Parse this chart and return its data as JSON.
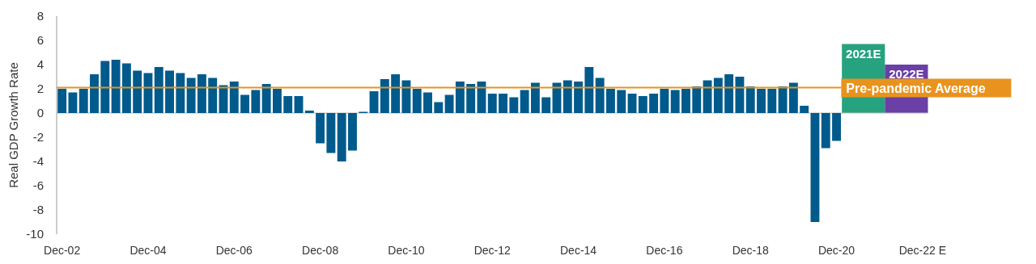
{
  "chart_data": [
    {
      "type": "bar",
      "ylabel": "Real GDP Growth Rate",
      "categories": [
        "Dec-02",
        null,
        null,
        null,
        null,
        null,
        null,
        null,
        "Dec-04",
        null,
        null,
        null,
        null,
        null,
        null,
        null,
        "Dec-06",
        null,
        null,
        null,
        null,
        null,
        null,
        null,
        "Dec-08",
        null,
        null,
        null,
        null,
        null,
        null,
        null,
        "Dec-10",
        null,
        null,
        null,
        null,
        null,
        null,
        null,
        "Dec-12",
        null,
        null,
        null,
        null,
        null,
        null,
        null,
        "Dec-14",
        null,
        null,
        null,
        null,
        null,
        null,
        null,
        "Dec-16",
        null,
        null,
        null,
        null,
        null,
        null,
        null,
        "Dec-18",
        null,
        null,
        null,
        null,
        null,
        null,
        null,
        "Dec-20",
        null,
        null,
        null,
        null,
        null,
        null,
        null,
        "Dec-22 E"
      ],
      "color": "#005a8c",
      "values": [
        2.0,
        1.7,
        2.0,
        3.2,
        4.3,
        4.4,
        4.1,
        3.5,
        3.3,
        3.8,
        3.5,
        3.3,
        2.9,
        3.2,
        2.9,
        2.3,
        2.6,
        1.5,
        1.9,
        2.4,
        2.0,
        1.4,
        1.4,
        0.2,
        -2.5,
        -3.3,
        -4.0,
        -3.1,
        0.1,
        1.8,
        2.8,
        3.2,
        2.7,
        2.0,
        1.7,
        0.9,
        1.5,
        2.6,
        2.4,
        2.6,
        1.6,
        1.6,
        1.3,
        1.9,
        2.5,
        1.3,
        2.5,
        2.7,
        2.6,
        3.8,
        2.9,
        2.0,
        1.9,
        1.6,
        1.4,
        1.6,
        2.0,
        1.9,
        2.0,
        2.2,
        2.7,
        2.9,
        3.2,
        3.0,
        2.2,
        2.0,
        2.0,
        2.2,
        2.5,
        0.6,
        -9.0,
        -2.9,
        -2.3,
        null,
        null,
        null,
        null,
        null,
        null,
        null,
        null
      ],
      "ylim": [
        -10,
        8
      ],
      "yticks": [
        -10,
        -8,
        -6,
        -4,
        -2,
        0,
        2,
        4,
        6,
        8
      ],
      "ref_lines": [
        {
          "axis": "y",
          "value": 2.1,
          "label": "Pre-pandemic Average",
          "color": "#e8931e"
        }
      ]
    },
    {
      "type": "bar",
      "categories": [
        "2021E",
        "2022E"
      ],
      "values": [
        5.7,
        4.0
      ],
      "colors": [
        "#26a27f",
        "#6a3fa6"
      ],
      "ylim": [
        -10,
        8
      ],
      "tick_labels": false
    }
  ]
}
